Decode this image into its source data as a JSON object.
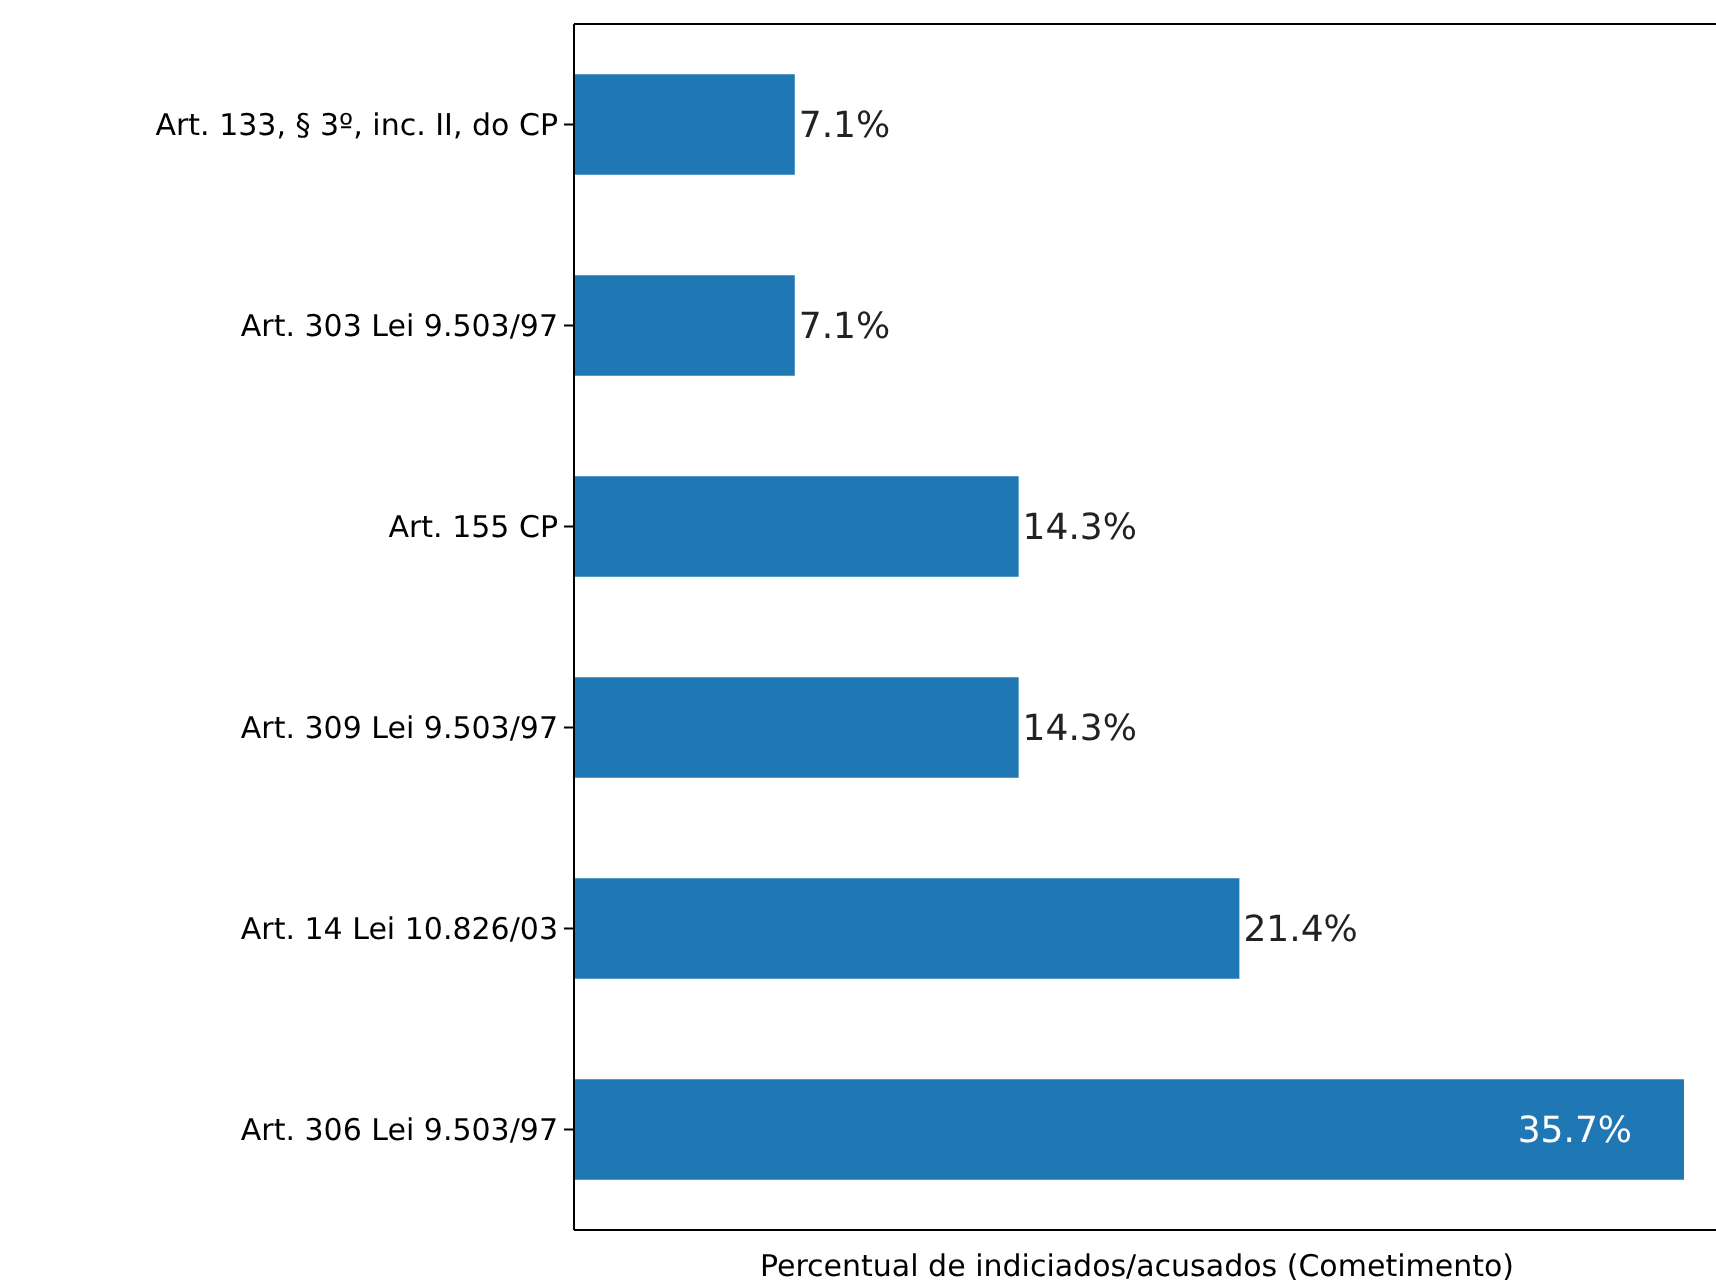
{
  "chart_data": {
    "type": "bar",
    "orientation": "horizontal",
    "xlabel": "Percentual de indiciados/acusados (Cometimento)",
    "categories": [
      "Art. 133, § 3º, inc. II, do CP",
      "Art. 303 Lei 9.503/97",
      "Art. 155 CP",
      "Art. 309 Lei 9.503/97",
      "Art. 14 Lei 10.826/03",
      "Art. 306 Lei 9.503/97"
    ],
    "values": [
      7.1,
      7.1,
      14.3,
      14.3,
      21.4,
      35.7
    ],
    "value_labels": [
      "7.1%",
      "7.1%",
      "14.3%",
      "14.3%",
      "21.4%",
      "35.7%"
    ],
    "color": "#1f77b4"
  }
}
